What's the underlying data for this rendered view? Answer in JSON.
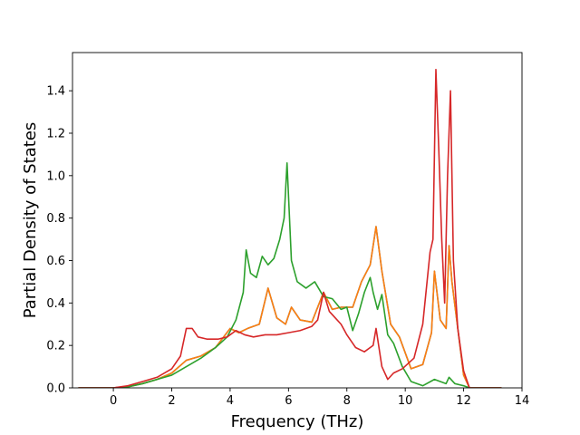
{
  "chart_data": {
    "type": "line",
    "title": "",
    "xlabel": "Frequency (THz)",
    "ylabel": "Partial Density of States",
    "xlim": [
      -1.4,
      14.0
    ],
    "ylim": [
      0.0,
      1.58
    ],
    "xticks": [
      0,
      2,
      4,
      6,
      8,
      10,
      12,
      14
    ],
    "xtick_labels": [
      "0",
      "2",
      "4",
      "6",
      "8",
      "10",
      "12",
      "14"
    ],
    "yticks": [
      0.0,
      0.2,
      0.4,
      0.6,
      0.8,
      1.0,
      1.2,
      1.4
    ],
    "ytick_labels": [
      "0.0",
      "0.2",
      "0.4",
      "0.6",
      "0.8",
      "1.0",
      "1.2",
      "1.4"
    ],
    "grid": false,
    "legend": null,
    "series": [
      {
        "color": "#1f77b4",
        "x": [
          -1.2,
          0,
          0.5,
          1,
          1.5,
          2,
          2.5,
          3,
          3.5,
          4,
          4.3,
          4.6,
          5,
          5.3,
          5.6,
          5.9,
          6.1,
          6.4,
          6.8,
          7.2,
          7.5,
          7.8,
          8.2,
          8.5,
          8.8,
          9.0,
          9.2,
          9.5,
          9.8,
          10.2,
          10.6,
          10.9,
          11.0,
          11.2,
          11.4,
          11.5,
          11.6,
          11.8,
          12.0,
          12.2,
          13.3
        ],
        "y": [
          0.0,
          0.0,
          0.005,
          0.02,
          0.04,
          0.07,
          0.13,
          0.15,
          0.19,
          0.28,
          0.26,
          0.28,
          0.3,
          0.47,
          0.33,
          0.3,
          0.38,
          0.32,
          0.31,
          0.45,
          0.37,
          0.38,
          0.38,
          0.5,
          0.58,
          0.76,
          0.55,
          0.3,
          0.24,
          0.09,
          0.11,
          0.26,
          0.55,
          0.32,
          0.28,
          0.67,
          0.5,
          0.28,
          0.06,
          0.0,
          0.0
        ]
      },
      {
        "color": "#ff7f0e",
        "x": [
          -1.2,
          0,
          0.5,
          1,
          1.5,
          2,
          2.5,
          3,
          3.5,
          4,
          4.3,
          4.6,
          5,
          5.3,
          5.6,
          5.9,
          6.1,
          6.4,
          6.8,
          7.2,
          7.5,
          7.8,
          8.2,
          8.5,
          8.8,
          9.0,
          9.2,
          9.5,
          9.8,
          10.2,
          10.6,
          10.9,
          11.0,
          11.2,
          11.4,
          11.5,
          11.6,
          11.8,
          12.0,
          12.2,
          13.3
        ],
        "y": [
          0.0,
          0.0,
          0.005,
          0.02,
          0.04,
          0.07,
          0.13,
          0.15,
          0.19,
          0.28,
          0.26,
          0.28,
          0.3,
          0.47,
          0.33,
          0.3,
          0.38,
          0.32,
          0.31,
          0.45,
          0.37,
          0.38,
          0.38,
          0.5,
          0.58,
          0.76,
          0.55,
          0.3,
          0.24,
          0.09,
          0.11,
          0.26,
          0.55,
          0.32,
          0.28,
          0.67,
          0.5,
          0.28,
          0.06,
          0.0,
          0.0
        ]
      },
      {
        "color": "#2ca02c",
        "x": [
          -1.2,
          0,
          0.5,
          1,
          1.5,
          2,
          2.5,
          3,
          3.5,
          3.9,
          4.2,
          4.45,
          4.55,
          4.7,
          4.9,
          5.1,
          5.3,
          5.5,
          5.7,
          5.85,
          5.95,
          6.1,
          6.3,
          6.6,
          6.9,
          7.2,
          7.5,
          7.8,
          8.0,
          8.2,
          8.4,
          8.6,
          8.8,
          8.9,
          9.05,
          9.2,
          9.4,
          9.6,
          9.9,
          10.2,
          10.6,
          11.0,
          11.4,
          11.5,
          11.7,
          12.0,
          12.2,
          13.3
        ],
        "y": [
          0.0,
          0.0,
          0.005,
          0.02,
          0.04,
          0.06,
          0.1,
          0.14,
          0.19,
          0.24,
          0.32,
          0.45,
          0.65,
          0.54,
          0.52,
          0.62,
          0.58,
          0.61,
          0.7,
          0.8,
          1.06,
          0.6,
          0.5,
          0.47,
          0.5,
          0.43,
          0.42,
          0.37,
          0.38,
          0.27,
          0.35,
          0.45,
          0.52,
          0.45,
          0.37,
          0.44,
          0.25,
          0.21,
          0.1,
          0.03,
          0.01,
          0.04,
          0.02,
          0.05,
          0.02,
          0.01,
          0.0,
          0.0
        ]
      },
      {
        "color": "#d62728",
        "x": [
          -1.2,
          0,
          0.5,
          1,
          1.5,
          2,
          2.3,
          2.5,
          2.7,
          2.9,
          3.2,
          3.6,
          3.9,
          4.2,
          4.5,
          4.8,
          5.2,
          5.6,
          6.0,
          6.4,
          6.8,
          7.0,
          7.2,
          7.4,
          7.6,
          7.8,
          8.0,
          8.3,
          8.6,
          8.9,
          9.0,
          9.2,
          9.4,
          9.6,
          9.9,
          10.3,
          10.6,
          10.85,
          10.95,
          11.05,
          11.15,
          11.25,
          11.35,
          11.45,
          11.55,
          11.65,
          11.8,
          12.0,
          12.2,
          13.3
        ],
        "y": [
          0.0,
          0.0,
          0.01,
          0.03,
          0.05,
          0.09,
          0.15,
          0.28,
          0.28,
          0.24,
          0.23,
          0.23,
          0.24,
          0.27,
          0.25,
          0.24,
          0.25,
          0.25,
          0.26,
          0.27,
          0.29,
          0.32,
          0.45,
          0.36,
          0.33,
          0.3,
          0.25,
          0.19,
          0.17,
          0.2,
          0.28,
          0.1,
          0.04,
          0.07,
          0.09,
          0.14,
          0.3,
          0.64,
          0.7,
          1.5,
          1.12,
          0.7,
          0.4,
          1.0,
          1.4,
          0.6,
          0.28,
          0.08,
          0.0,
          0.0
        ]
      }
    ]
  }
}
